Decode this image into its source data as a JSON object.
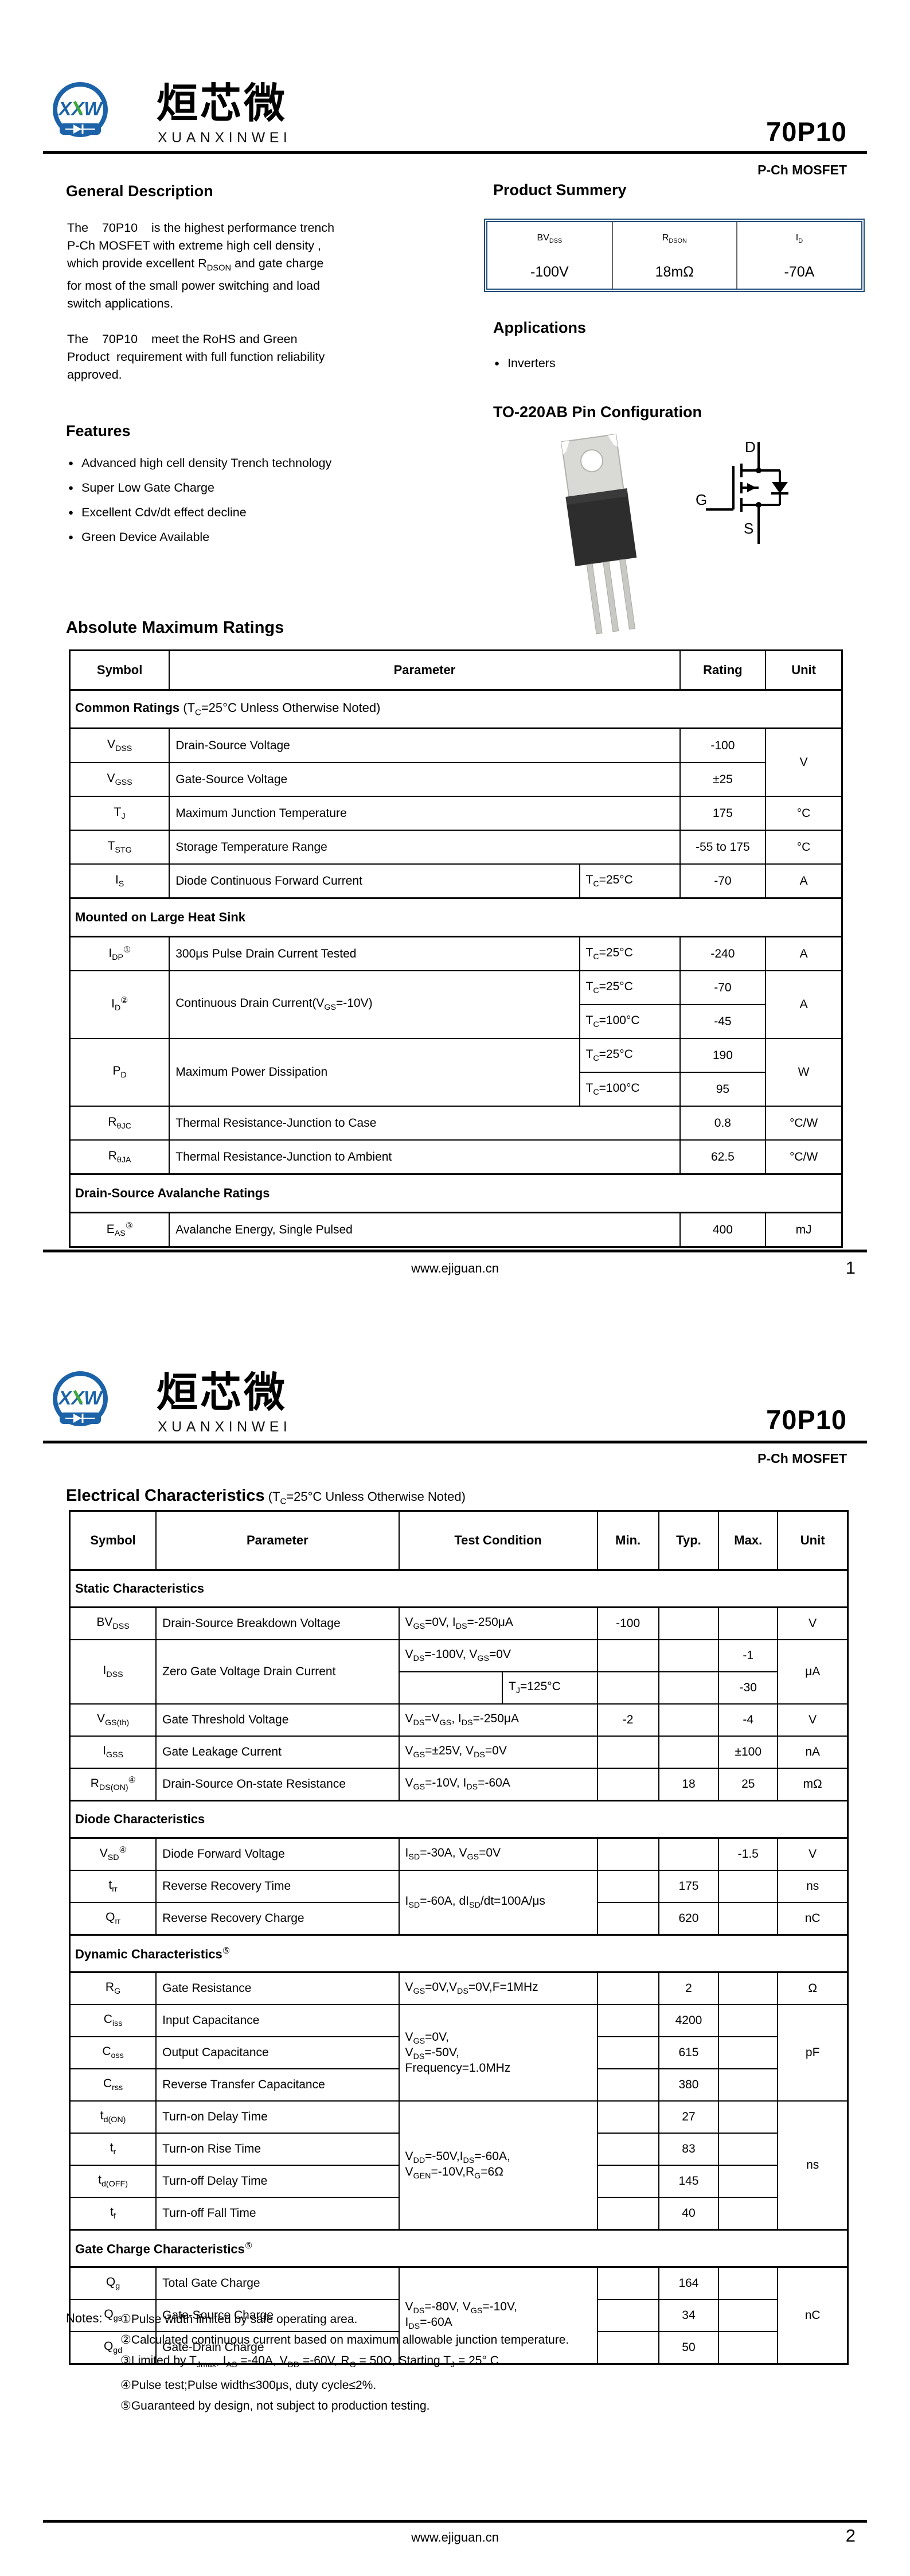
{
  "colors": {
    "accent_navy": "#1f4e79",
    "table_header_gray": "#d9d9d9",
    "logo_blue": "#1b62a8",
    "logo_green": "#3faa36",
    "body_text": "#000000"
  },
  "bullet_glyph": "●",
  "page1": {
    "part_number": "70P10",
    "subtitle": "P-Ch MOSFET",
    "brand": {
      "icon_text": "XXW",
      "name_cn": "烜芯微",
      "name_en": "XUANXINWEI"
    },
    "general_description": {
      "title": "General Description",
      "p1": "The    70P10    is the highest performance trench P-Ch MOSFET with extreme high cell density ,  which provide excellent R~DSON~ and gate charge  for most of the small power switching and load  switch applications.",
      "p2": "The    70P10    meet the RoHS and Green Product  requirement with full function reliability approved."
    },
    "features": {
      "title": "Features",
      "items": [
        "Advanced high cell density Trench technology",
        "Super Low Gate Charge",
        "Excellent Cdv/dt effect decline",
        "Green Device Available"
      ]
    },
    "product_summary": {
      "title": "Product Summery",
      "table": {
        "cols": [
          33.4,
          33.3,
          33.3
        ],
        "rows": [
          [
            "BV~DSS~",
            "R~DSON~",
            "I~D~"
          ],
          [
            "-100V",
            "18mΩ",
            "-70A"
          ]
        ]
      }
    },
    "applications": {
      "title": "Applications",
      "items": [
        "Inverters"
      ]
    },
    "pin_config": {
      "title": "TO-220AB  Pin Configuration",
      "d": "D",
      "g": "G",
      "s": "S"
    },
    "abs_max": {
      "title": "Absolute Maximum Ratings",
      "table": {
        "cols": [
          12.9,
          53.1,
          13.0,
          11.1,
          9.9
        ],
        "rows": [
          [
            {
              "t": "Symbol",
              "c": "h"
            },
            {
              "t": "Parameter",
              "c": "h",
              "cs": 2
            },
            {
              "t": "Rating",
              "c": "h"
            },
            {
              "t": "Unit",
              "c": "h"
            }
          ],
          [
            {
              "t": "**Common Ratings** (T~C~=25°C Unless Otherwise Noted)",
              "c": "s",
              "cs": 5
            }
          ],
          [
            {
              "t": "V~DSS~"
            },
            {
              "t": "Drain-Source Voltage",
              "c": "l",
              "cs": 2
            },
            {
              "t": "-100"
            },
            {
              "t": "V",
              "rs": 2
            }
          ],
          [
            {
              "t": "V~GSS~"
            },
            {
              "t": "Gate-Source Voltage",
              "c": "l",
              "cs": 2
            },
            {
              "t": "±25"
            }
          ],
          [
            {
              "t": "T~J~"
            },
            {
              "t": "Maximum Junction Temperature",
              "c": "l",
              "cs": 2
            },
            {
              "t": "175"
            },
            {
              "t": "°C"
            }
          ],
          [
            {
              "t": "T~STG~"
            },
            {
              "t": "Storage Temperature Range",
              "c": "l",
              "cs": 2
            },
            {
              "t": "-55 to 175"
            },
            {
              "t": "°C"
            }
          ],
          [
            {
              "t": "I~S~"
            },
            {
              "t": "Diode Continuous Forward Current",
              "c": "l"
            },
            {
              "t": "T~C~=25°C",
              "c": "l"
            },
            {
              "t": "-70"
            },
            {
              "t": "A"
            }
          ],
          [
            {
              "t": "**Mounted on Large Heat Sink**",
              "c": "s",
              "cs": 5
            }
          ],
          [
            {
              "t": "I~DP~^①^"
            },
            {
              "t": "300μs Pulse Drain Current Tested",
              "c": "l"
            },
            {
              "t": "T~C~=25°C",
              "c": "l"
            },
            {
              "t": "-240"
            },
            {
              "t": "A"
            }
          ],
          [
            {
              "t": "I~D~^②^",
              "rs": 2
            },
            {
              "t": "Continuous Drain Current(V~GS~=-10V)",
              "c": "l",
              "rs": 2
            },
            {
              "t": "T~C~=25°C",
              "c": "l"
            },
            {
              "t": "-70"
            },
            {
              "t": "A",
              "rs": 2
            }
          ],
          [
            {
              "t": "T~C~=100°C",
              "c": "l"
            },
            {
              "t": "-45"
            }
          ],
          [
            {
              "t": "P~D~",
              "rs": 2
            },
            {
              "t": "Maximum Power Dissipation",
              "c": "l",
              "rs": 2
            },
            {
              "t": "T~C~=25°C",
              "c": "l"
            },
            {
              "t": "190"
            },
            {
              "t": "W",
              "rs": 2
            }
          ],
          [
            {
              "t": "T~C~=100°C",
              "c": "l"
            },
            {
              "t": "95"
            }
          ],
          [
            {
              "t": "R~θJC~"
            },
            {
              "t": "Thermal Resistance-Junction to Case",
              "c": "l",
              "cs": 2
            },
            {
              "t": "0.8"
            },
            {
              "t": "°C/W"
            }
          ],
          [
            {
              "t": "R~θJA~"
            },
            {
              "t": "Thermal Resistance-Junction to Ambient",
              "c": "l",
              "cs": 2
            },
            {
              "t": "62.5"
            },
            {
              "t": "°C/W"
            }
          ],
          [
            {
              "t": "**Drain-Source Avalanche Ratings**",
              "c": "s",
              "cs": 5
            }
          ],
          [
            {
              "t": "E~AS~^③^"
            },
            {
              "t": "Avalanche Energy, Single Pulsed",
              "c": "l",
              "cs": 2
            },
            {
              "t": "400"
            },
            {
              "t": "mJ"
            }
          ]
        ]
      }
    },
    "footer": {
      "site": "www.ejiguan.cn",
      "page": "1"
    }
  },
  "page2": {
    "part_number": "70P10",
    "subtitle": "P-Ch MOSFET",
    "elec": {
      "title": "Electrical Characteristics",
      "title_paren": " (T~C~=25°C Unless Otherwise Noted)",
      "table": {
        "cols": [
          11.1,
          31.2,
          13.3,
          12.2,
          7.9,
          7.7,
          7.6,
          9.0
        ],
        "rows": [
          [
            {
              "t": "Symbol",
              "c": "h"
            },
            {
              "t": "Parameter",
              "c": "h"
            },
            {
              "t": "Test Condition",
              "c": "h",
              "cs": 2
            },
            {
              "t": "Min.",
              "c": "h"
            },
            {
              "t": "Typ.",
              "c": "h"
            },
            {
              "t": "Max.",
              "c": "h"
            },
            {
              "t": "Unit",
              "c": "h"
            }
          ],
          [
            {
              "t": "**Static Characteristics**",
              "c": "s",
              "cs": 8
            }
          ],
          [
            {
              "t": "BV~DSS~"
            },
            {
              "t": "Drain-Source Breakdown Voltage",
              "c": "l"
            },
            {
              "t": "V~GS~=0V, I~DS~=-250μA",
              "c": "l",
              "cs": 2
            },
            {
              "t": "-100"
            },
            {
              "t": ""
            },
            {
              "t": ""
            },
            {
              "t": "V"
            }
          ],
          [
            {
              "t": "I~DSS~",
              "rs": 2
            },
            {
              "t": "Zero Gate Voltage Drain Current",
              "c": "l",
              "rs": 2
            },
            {
              "t": "V~DS~=-100V, V~GS~=0V",
              "c": "l",
              "cs": 2
            },
            {
              "t": ""
            },
            {
              "t": ""
            },
            {
              "t": "-1"
            },
            {
              "t": "μA",
              "rs": 2
            }
          ],
          [
            {
              "t": ""
            },
            {
              "t": "T~J~=125°C",
              "c": "l"
            },
            {
              "t": ""
            },
            {
              "t": ""
            },
            {
              "t": "-30"
            }
          ],
          [
            {
              "t": "V~GS(th)~"
            },
            {
              "t": "Gate Threshold Voltage",
              "c": "l"
            },
            {
              "t": "V~DS~=V~GS~, I~DS~=-250μA",
              "c": "l",
              "cs": 2
            },
            {
              "t": "-2"
            },
            {
              "t": ""
            },
            {
              "t": "-4"
            },
            {
              "t": "V"
            }
          ],
          [
            {
              "t": "I~GSS~"
            },
            {
              "t": "Gate Leakage Current",
              "c": "l"
            },
            {
              "t": "V~GS~=±25V, V~DS~=0V",
              "c": "l",
              "cs": 2
            },
            {
              "t": ""
            },
            {
              "t": ""
            },
            {
              "t": "±100"
            },
            {
              "t": "nA"
            }
          ],
          [
            {
              "t": "R~DS(ON)~^④^"
            },
            {
              "t": "Drain-Source On-state Resistance",
              "c": "l"
            },
            {
              "t": "V~GS~=-10V, I~DS~=-60A",
              "c": "l",
              "cs": 2
            },
            {
              "t": ""
            },
            {
              "t": "18"
            },
            {
              "t": "25"
            },
            {
              "t": "mΩ"
            }
          ],
          [
            {
              "t": "**Diode Characteristics**",
              "c": "s",
              "cs": 8
            }
          ],
          [
            {
              "t": "V~SD~^④^"
            },
            {
              "t": "Diode Forward Voltage",
              "c": "l"
            },
            {
              "t": "I~SD~=-30A, V~GS~=0V",
              "c": "l",
              "cs": 2
            },
            {
              "t": ""
            },
            {
              "t": ""
            },
            {
              "t": "-1.5"
            },
            {
              "t": "V"
            }
          ],
          [
            {
              "t": "t~rr~"
            },
            {
              "t": "Reverse Recovery Time",
              "c": "l"
            },
            {
              "t": "I~SD~=-60A, dI~SD~/dt=100A/μs",
              "c": "l",
              "cs": 2,
              "rs": 2
            },
            {
              "t": ""
            },
            {
              "t": "175"
            },
            {
              "t": ""
            },
            {
              "t": "ns"
            }
          ],
          [
            {
              "t": "Q~rr~"
            },
            {
              "t": "Reverse Recovery Charge",
              "c": "l"
            },
            {
              "t": ""
            },
            {
              "t": "620"
            },
            {
              "t": ""
            },
            {
              "t": "nC"
            }
          ],
          [
            {
              "t": "**Dynamic Characteristics**^⑤^",
              "c": "s",
              "cs": 8
            }
          ],
          [
            {
              "t": "R~G~"
            },
            {
              "t": "Gate Resistance",
              "c": "l"
            },
            {
              "t": "V~GS~=0V,V~DS~=0V,F=1MHz",
              "c": "l",
              "cs": 2
            },
            {
              "t": ""
            },
            {
              "t": "2"
            },
            {
              "t": ""
            },
            {
              "t": "Ω"
            }
          ],
          [
            {
              "t": "C~iss~"
            },
            {
              "t": "Input Capacitance",
              "c": "l"
            },
            {
              "t": "V~GS~=0V,\nV~DS~=-50V,\nFrequency=1.0MHz",
              "c": "l",
              "cs": 2,
              "rs": 3
            },
            {
              "t": ""
            },
            {
              "t": "4200"
            },
            {
              "t": ""
            },
            {
              "t": "pF",
              "rs": 3
            }
          ],
          [
            {
              "t": "C~oss~"
            },
            {
              "t": "Output Capacitance",
              "c": "l"
            },
            {
              "t": ""
            },
            {
              "t": "615"
            },
            {
              "t": ""
            }
          ],
          [
            {
              "t": "C~rss~"
            },
            {
              "t": "Reverse Transfer Capacitance",
              "c": "l"
            },
            {
              "t": ""
            },
            {
              "t": "380"
            },
            {
              "t": ""
            }
          ],
          [
            {
              "t": "t~d(ON)~"
            },
            {
              "t": "Turn-on Delay Time",
              "c": "l"
            },
            {
              "t": "V~DD~=-50V,I~DS~=-60A,\nV~GEN~=-10V,R~G~=6Ω",
              "c": "l",
              "cs": 2,
              "rs": 4
            },
            {
              "t": ""
            },
            {
              "t": "27"
            },
            {
              "t": ""
            },
            {
              "t": "ns",
              "rs": 4
            }
          ],
          [
            {
              "t": "t~r~"
            },
            {
              "t": "Turn-on Rise Time",
              "c": "l"
            },
            {
              "t": ""
            },
            {
              "t": "83"
            },
            {
              "t": ""
            }
          ],
          [
            {
              "t": "t~d(OFF)~"
            },
            {
              "t": "Turn-off Delay Time",
              "c": "l"
            },
            {
              "t": ""
            },
            {
              "t": "145"
            },
            {
              "t": ""
            }
          ],
          [
            {
              "t": "t~f~"
            },
            {
              "t": "Turn-off Fall Time",
              "c": "l"
            },
            {
              "t": ""
            },
            {
              "t": "40"
            },
            {
              "t": ""
            }
          ],
          [
            {
              "t": "**Gate Charge Characteristics**^⑤^",
              "c": "s",
              "cs": 8
            }
          ],
          [
            {
              "t": "Q~g~"
            },
            {
              "t": "Total Gate Charge",
              "c": "l"
            },
            {
              "t": "V~DS~=-80V, V~GS~=-10V,\nI~DS~=-60A",
              "c": "l",
              "cs": 2,
              "rs": 3
            },
            {
              "t": ""
            },
            {
              "t": "164"
            },
            {
              "t": ""
            },
            {
              "t": "nC",
              "rs": 3
            }
          ],
          [
            {
              "t": "Q~gs~"
            },
            {
              "t": "Gate-Source Charge",
              "c": "l"
            },
            {
              "t": ""
            },
            {
              "t": "34"
            },
            {
              "t": ""
            }
          ],
          [
            {
              "t": "Q~gd~"
            },
            {
              "t": "Gate-Drain Charge",
              "c": "l"
            },
            {
              "t": ""
            },
            {
              "t": "50"
            },
            {
              "t": ""
            }
          ]
        ]
      }
    },
    "notes": {
      "label": "Notes:",
      "items": [
        "①Pulse width limited by safe operating area.",
        "②Calculated continuous current based on maximum allowable  junction temperature.",
        "③Limited by T~Jmax~, I~AS~ =-40A, V~DD~ =-60V, R~G~ = 50Ω, Starting T~J~ = 25° C.",
        "④Pulse test;Pulse width≤300μs, duty cycle≤2%.",
        "⑤Guaranteed by design, not subject to production testing."
      ]
    },
    "footer": {
      "site": "www.ejiguan.cn",
      "page": "2"
    }
  }
}
